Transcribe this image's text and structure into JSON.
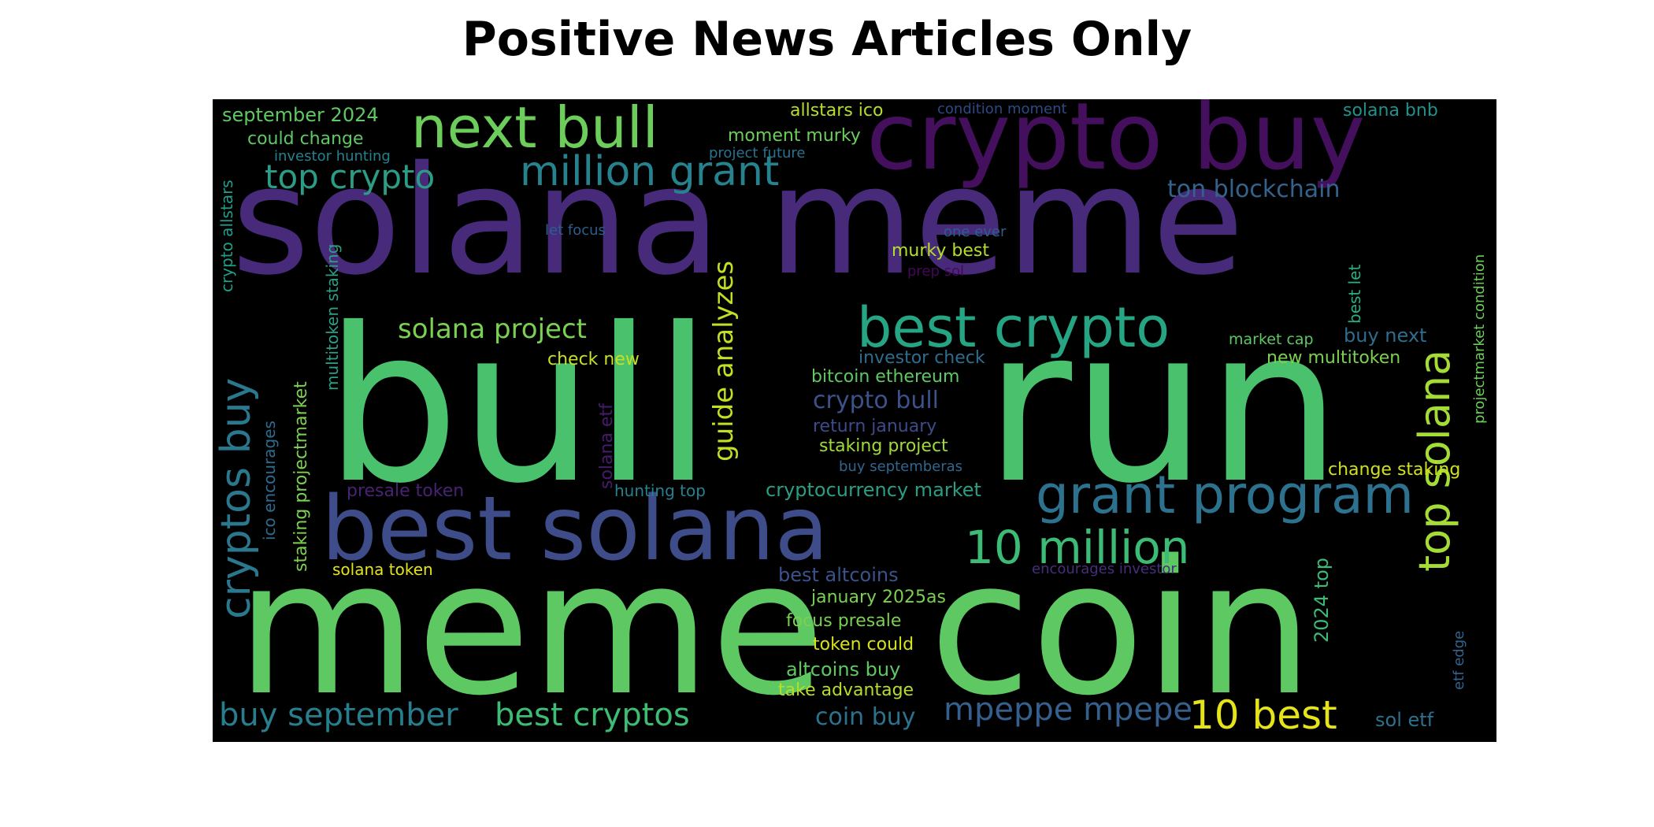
{
  "title": "Positive News Articles Only",
  "words": [
    {
      "text": "solana meme",
      "color": "#472a7a"
    },
    {
      "text": "bull",
      "color": "#4ac16d"
    },
    {
      "text": "run",
      "color": "#4ac16d"
    },
    {
      "text": "meme",
      "color": "#5ec962"
    },
    {
      "text": "coin",
      "color": "#5ec962"
    },
    {
      "text": "crypto buy",
      "color": "#440f5c"
    },
    {
      "text": "best solana",
      "color": "#3e4c8a"
    },
    {
      "text": "next bull",
      "color": "#6ccd5a"
    },
    {
      "text": "best crypto",
      "color": "#25a584"
    },
    {
      "text": "grant program",
      "color": "#2c728e"
    },
    {
      "text": "million grant",
      "color": "#26828e"
    },
    {
      "text": "10 million",
      "color": "#3bbb75"
    },
    {
      "text": "top solana",
      "color": "#a5db36"
    },
    {
      "text": "cryptos buy",
      "color": "#2a788e"
    },
    {
      "text": "top crypto",
      "color": "#2b9c85"
    },
    {
      "text": "buy september",
      "color": "#277f8e"
    },
    {
      "text": "best cryptos",
      "color": "#3dbc74"
    },
    {
      "text": "10 best",
      "color": "#e5e419"
    },
    {
      "text": "mpeppe mpepe",
      "color": "#355f8d"
    },
    {
      "text": "solana project",
      "color": "#7ad151"
    },
    {
      "text": "guide analyzes",
      "color": "#c2df23"
    },
    {
      "text": "ton blockchain",
      "color": "#33638d"
    },
    {
      "text": "crypto bull",
      "color": "#3b528b"
    },
    {
      "text": "coin buy",
      "color": "#2c728e"
    },
    {
      "text": "september 2024",
      "color": "#5ec962"
    },
    {
      "text": "could change",
      "color": "#5ec962"
    },
    {
      "text": "allstars ico",
      "color": "#b5de2b"
    },
    {
      "text": "moment murky",
      "color": "#6ccd5a"
    },
    {
      "text": "condition moment",
      "color": "#2c4a84"
    },
    {
      "text": "solana bnb",
      "color": "#21918c"
    },
    {
      "text": "investor hunting",
      "color": "#27808e"
    },
    {
      "text": "project future",
      "color": "#2c728e"
    },
    {
      "text": "crypto allstars",
      "color": "#1f9e89"
    },
    {
      "text": "multitoken staking",
      "color": "#2e9e85"
    },
    {
      "text": "staking projectmarket",
      "color": "#7ad151"
    },
    {
      "text": "ico encourages",
      "color": "#2e6b8e"
    },
    {
      "text": "let focus",
      "color": "#2c5e8d"
    },
    {
      "text": "one ever",
      "color": "#2c5e8d"
    },
    {
      "text": "murky best",
      "color": "#b5de2b"
    },
    {
      "text": "prep sol",
      "color": "#46075a"
    },
    {
      "text": "best let",
      "color": "#29af7f"
    },
    {
      "text": "projectmarket condition",
      "color": "#6ccd5a"
    },
    {
      "text": "market cap",
      "color": "#5ec962"
    },
    {
      "text": "buy next",
      "color": "#2e6d8e"
    },
    {
      "text": "new multitoken",
      "color": "#7ad151"
    },
    {
      "text": "check new",
      "color": "#c8e020"
    },
    {
      "text": "investor check",
      "color": "#2e6d8e"
    },
    {
      "text": "bitcoin ethereum",
      "color": "#5ec962"
    },
    {
      "text": "return january",
      "color": "#3e4a89"
    },
    {
      "text": "staking project",
      "color": "#a0da39"
    },
    {
      "text": "buy septemberas",
      "color": "#31668e"
    },
    {
      "text": "change staking",
      "color": "#d0e11c"
    },
    {
      "text": "presale token",
      "color": "#482374"
    },
    {
      "text": "solana etf",
      "color": "#481a6c"
    },
    {
      "text": "hunting top",
      "color": "#26818e"
    },
    {
      "text": "cryptocurrency market",
      "color": "#2a9e85"
    },
    {
      "text": "solana token",
      "color": "#e5e419"
    },
    {
      "text": "encourages investor",
      "color": "#472d7b"
    },
    {
      "text": "best altcoins",
      "color": "#3b528b"
    },
    {
      "text": "january 2025as",
      "color": "#7ad151"
    },
    {
      "text": "focus presale",
      "color": "#7ad151"
    },
    {
      "text": "token could",
      "color": "#d8e219"
    },
    {
      "text": "altcoins buy",
      "color": "#5ec962"
    },
    {
      "text": "take advantage",
      "color": "#b5de2b"
    },
    {
      "text": "2024 top",
      "color": "#3bbb75"
    },
    {
      "text": "etf edge",
      "color": "#33638d"
    },
    {
      "text": "sol etf",
      "color": "#2c728e"
    }
  ]
}
